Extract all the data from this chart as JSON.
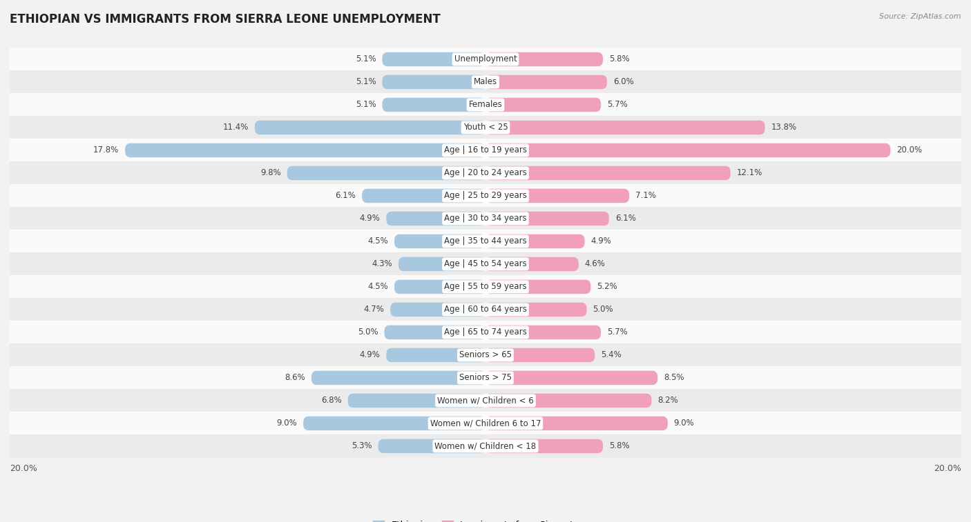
{
  "title": "ETHIOPIAN VS IMMIGRANTS FROM SIERRA LEONE UNEMPLOYMENT",
  "source": "Source: ZipAtlas.com",
  "categories": [
    "Unemployment",
    "Males",
    "Females",
    "Youth < 25",
    "Age | 16 to 19 years",
    "Age | 20 to 24 years",
    "Age | 25 to 29 years",
    "Age | 30 to 34 years",
    "Age | 35 to 44 years",
    "Age | 45 to 54 years",
    "Age | 55 to 59 years",
    "Age | 60 to 64 years",
    "Age | 65 to 74 years",
    "Seniors > 65",
    "Seniors > 75",
    "Women w/ Children < 6",
    "Women w/ Children 6 to 17",
    "Women w/ Children < 18"
  ],
  "ethiopian": [
    5.1,
    5.1,
    5.1,
    11.4,
    17.8,
    9.8,
    6.1,
    4.9,
    4.5,
    4.3,
    4.5,
    4.7,
    5.0,
    4.9,
    8.6,
    6.8,
    9.0,
    5.3
  ],
  "sierra_leone": [
    5.8,
    6.0,
    5.7,
    13.8,
    20.0,
    12.1,
    7.1,
    6.1,
    4.9,
    4.6,
    5.2,
    5.0,
    5.7,
    5.4,
    8.5,
    8.2,
    9.0,
    5.8
  ],
  "ethiopian_color": "#a8c8e0",
  "sierra_leone_color": "#f0a0b8",
  "background_color": "#f2f2f2",
  "row_color_light": "#fafafa",
  "row_color_dark": "#ebebeb",
  "max_val": 20.0,
  "label_ethiopian": "Ethiopian",
  "label_sierra_leone": "Immigrants from Sierra Leone",
  "title_fontsize": 12,
  "bar_height": 0.62,
  "value_fontsize": 8.5,
  "cat_fontsize": 8.5
}
